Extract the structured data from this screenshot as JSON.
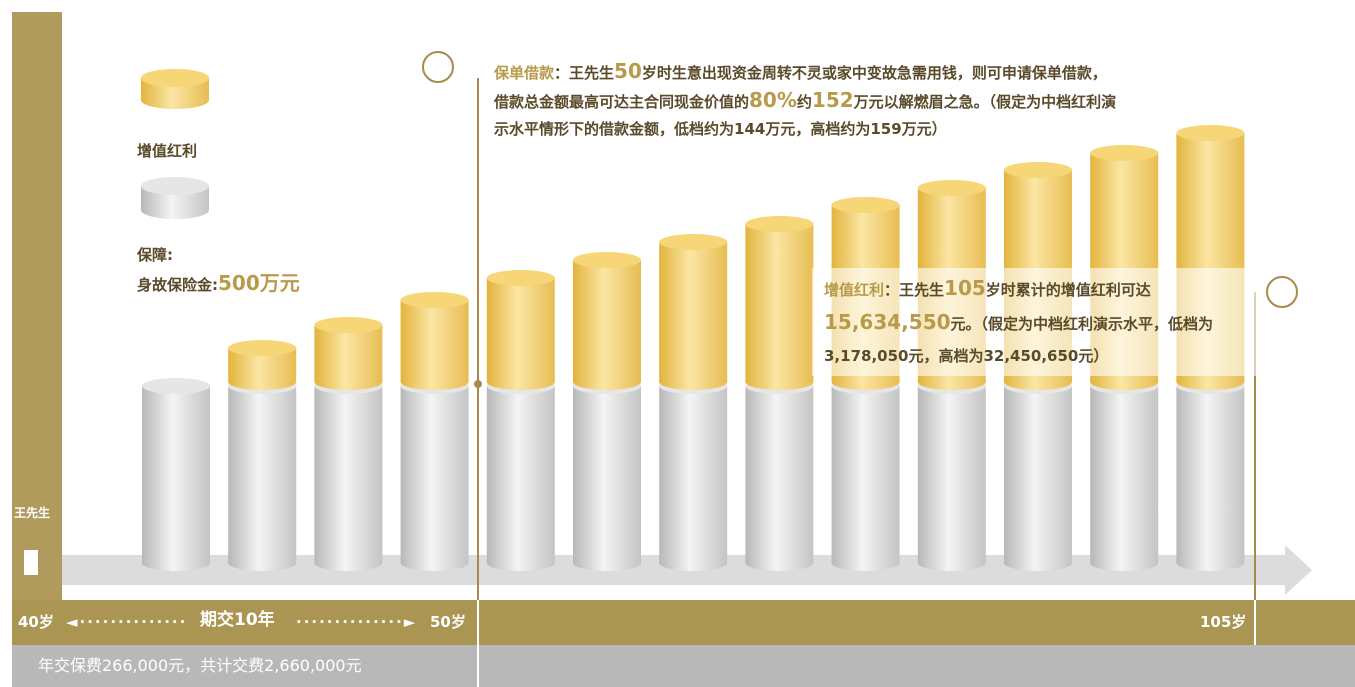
{
  "legend": {
    "bonus": "增值红利",
    "protection": "保障:",
    "death_benefit_label": "身故保险金:",
    "death_benefit_value": "500万元"
  },
  "loan_note": {
    "title": "保单借款",
    "p1": "：王先生",
    "age": "50",
    "p2": "岁时生意出现资金周转不灵或家中变故急需用钱，则可申请保单借款，借款总金额最高可达主合同现金价值的",
    "pct": "80%",
    "p3": "约",
    "amount": "152",
    "p4": "万元以解燃眉之急。（假定为中档红利演示水平情形下的借款金额，低档约为144万元，高档约为159万元）"
  },
  "bonus_note": {
    "title": "增值红利",
    "p1": "：王先生",
    "age": "105",
    "p2": "岁时累计的增值红利可达",
    "amount": "15,634,550",
    "p3": "元。（假定为中档红利演示水平，低档为3,178,050元，高档为32,450,650元）"
  },
  "person": "王先生",
  "timeline": {
    "start": "40岁",
    "period": "期交10年",
    "end_pay": "50岁",
    "end": "105岁"
  },
  "footer": "年交保费266,000元，共计交费2,660,000元"
}
